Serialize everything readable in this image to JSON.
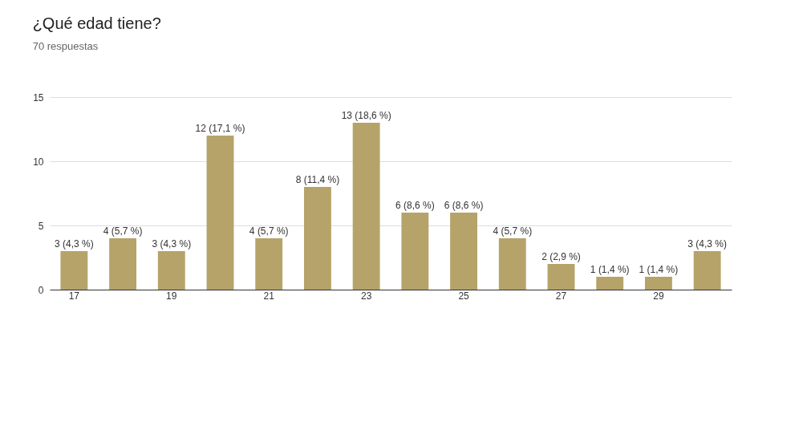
{
  "chart_data": {
    "type": "bar",
    "title": "¿Qué edad tiene?",
    "subtitle": "70 respuestas",
    "categories": [
      "17",
      null,
      "19",
      null,
      "21",
      null,
      "23",
      null,
      "25",
      null,
      "27",
      null,
      "29",
      null
    ],
    "values": [
      3,
      4,
      3,
      12,
      4,
      8,
      13,
      6,
      6,
      4,
      2,
      1,
      1,
      3
    ],
    "value_labels": [
      "3 (4,3 %)",
      "4 (5,7 %)",
      "3 (4,3 %)",
      "12 (17,1 %)",
      "4 (5,7 %)",
      "8 (11,4 %)",
      "13 (18,6 %)",
      "6 (8,6 %)",
      "6 (8,6 %)",
      "4 (5,7 %)",
      "2 (2,9 %)",
      "1 (1,4 %)",
      "1 (1,4 %)",
      "3 (4,3 %)"
    ],
    "color": "#b5a36a",
    "ylim": [
      0,
      15
    ],
    "yticks": [
      0,
      5,
      10,
      15
    ],
    "grid": "y"
  }
}
